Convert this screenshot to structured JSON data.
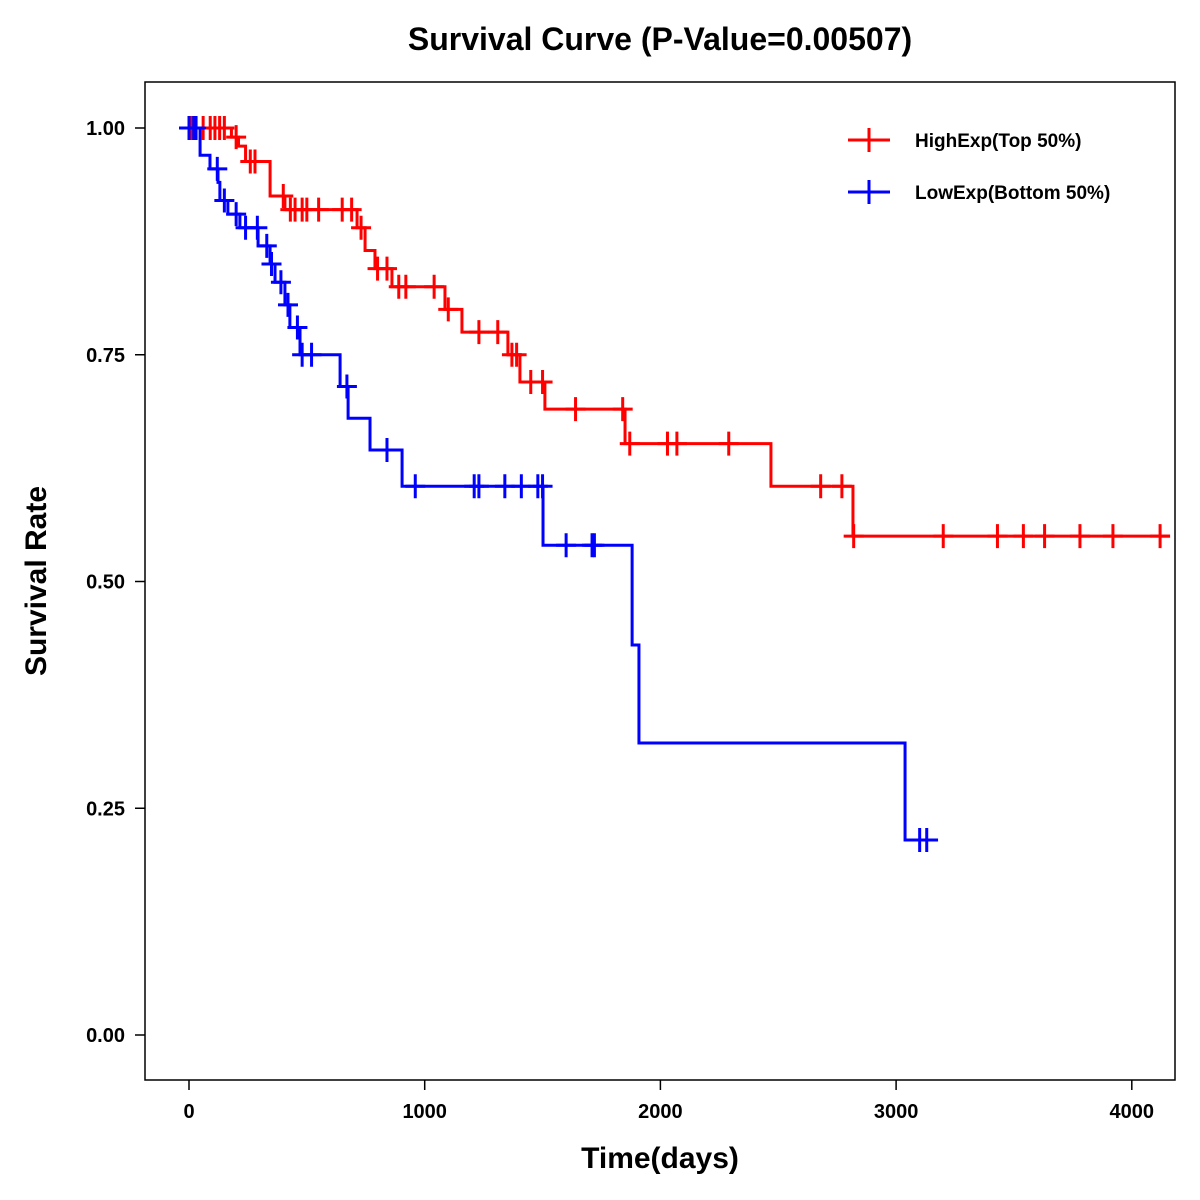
{
  "chart_data": {
    "type": "line",
    "title": "Survival Curve (P-Value=0.00507)",
    "xlabel": "Time(days)",
    "ylabel": "Survival Rate",
    "xlim": [
      -190,
      4180
    ],
    "ylim": [
      -0.05,
      1.05
    ],
    "xticks": [
      0,
      1000,
      2000,
      3000,
      4000
    ],
    "xtick_labels": [
      "0",
      "1000",
      "2000",
      "3000",
      "4000"
    ],
    "yticks": [
      0,
      0.25,
      0.5,
      0.75,
      1.0
    ],
    "ytick_labels": [
      "0.00",
      "0.25",
      "0.50",
      "0.75",
      "1.00"
    ],
    "grid": false,
    "legend_position": "top-right",
    "series": [
      {
        "name": "HighExp(Top 50%)",
        "color": "#ff0000",
        "steps": [
          [
            0,
            1.0
          ],
          [
            180,
            0.99
          ],
          [
            210,
            0.98
          ],
          [
            240,
            0.963
          ],
          [
            344,
            0.925
          ],
          [
            407,
            0.91
          ],
          [
            713,
            0.89
          ],
          [
            747,
            0.865
          ],
          [
            789,
            0.845
          ],
          [
            861,
            0.825
          ],
          [
            1086,
            0.8
          ],
          [
            1158,
            0.775
          ],
          [
            1353,
            0.75
          ],
          [
            1404,
            0.72
          ],
          [
            1510,
            0.69
          ],
          [
            1850,
            0.652
          ],
          [
            2469,
            0.605
          ],
          [
            2817,
            0.55
          ]
        ],
        "end": 4162,
        "censored": [
          10,
          60,
          90,
          110,
          130,
          150,
          200,
          260,
          280,
          400,
          430,
          450,
          480,
          500,
          550,
          650,
          690,
          730,
          800,
          840,
          890,
          920,
          1040,
          1100,
          1230,
          1310,
          1370,
          1390,
          1450,
          1500,
          1640,
          1840,
          1870,
          2030,
          2070,
          2290,
          2680,
          2770,
          2820,
          3200,
          3430,
          3540,
          3630,
          3780,
          3920,
          4120
        ]
      },
      {
        "name": "LowExp(Bottom 50%)",
        "color": "#0000ff",
        "steps": [
          [
            0,
            1.0
          ],
          [
            47,
            0.97
          ],
          [
            89,
            0.955
          ],
          [
            123,
            0.94
          ],
          [
            131,
            0.92
          ],
          [
            165,
            0.905
          ],
          [
            216,
            0.89
          ],
          [
            293,
            0.87
          ],
          [
            344,
            0.85
          ],
          [
            365,
            0.83
          ],
          [
            407,
            0.805
          ],
          [
            428,
            0.78
          ],
          [
            471,
            0.75
          ],
          [
            641,
            0.715
          ],
          [
            675,
            0.68
          ],
          [
            768,
            0.645
          ],
          [
            904,
            0.605
          ],
          [
            1502,
            0.54
          ],
          [
            1880,
            0.43
          ],
          [
            1909,
            0.322
          ],
          [
            3038,
            0.215
          ]
        ],
        "end": 3178,
        "censored": [
          0,
          20,
          30,
          120,
          150,
          200,
          240,
          290,
          330,
          350,
          390,
          420,
          460,
          480,
          520,
          670,
          840,
          960,
          1210,
          1230,
          1340,
          1410,
          1480,
          1500,
          1600,
          1710,
          1720,
          3100,
          3130
        ]
      }
    ]
  }
}
